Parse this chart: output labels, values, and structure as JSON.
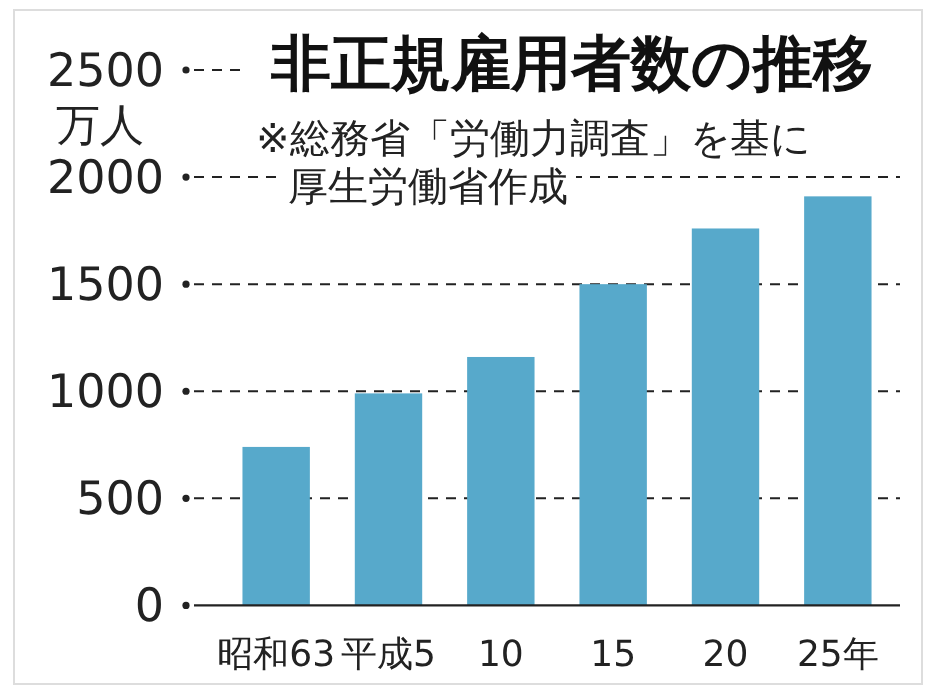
{
  "chart_data": {
    "type": "bar",
    "title": "非正規雇用者数の推移",
    "ylabel": "万人",
    "annotations": [
      "※総務省「労働力調査」を基に",
      "厚生労働省作成"
    ],
    "categories": [
      "昭和63",
      "平成5",
      "10",
      "15",
      "20",
      "25年"
    ],
    "values": [
      740,
      990,
      1160,
      1500,
      1760,
      1910
    ],
    "color": "#57a9cb",
    "ylim": [
      0,
      2500
    ],
    "yticks": [
      0,
      500,
      1000,
      1500,
      2000,
      2500
    ],
    "grid": "y"
  }
}
